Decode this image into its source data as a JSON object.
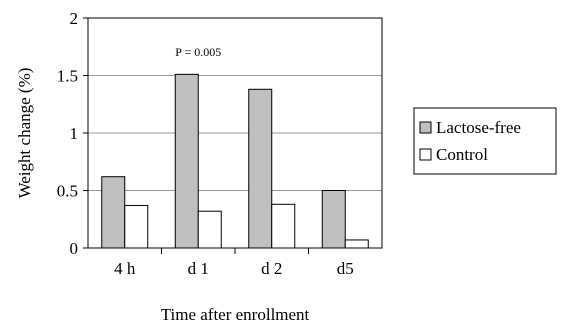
{
  "chart_data": {
    "type": "bar",
    "title": "",
    "xlabel": "Time after enrollment",
    "ylabel": "Weight change (%)",
    "ylim": [
      0,
      2
    ],
    "yticks": [
      "0",
      "0.5",
      "1",
      "1.5",
      "2"
    ],
    "ytick_values": [
      0,
      0.5,
      1,
      1.5,
      2
    ],
    "categories": [
      "4 h",
      "d 1",
      "d 2",
      "d5"
    ],
    "series": [
      {
        "name": "Lactose-free",
        "values": [
          0.62,
          1.51,
          1.38,
          0.5
        ],
        "color": "#c0c0c0"
      },
      {
        "name": "Control",
        "values": [
          0.37,
          0.32,
          0.38,
          0.07
        ],
        "color": "#ffffff"
      }
    ],
    "annotation": {
      "text": "P = 0.005",
      "category": "d 1"
    },
    "grid": "horizontal",
    "legend": "right"
  }
}
